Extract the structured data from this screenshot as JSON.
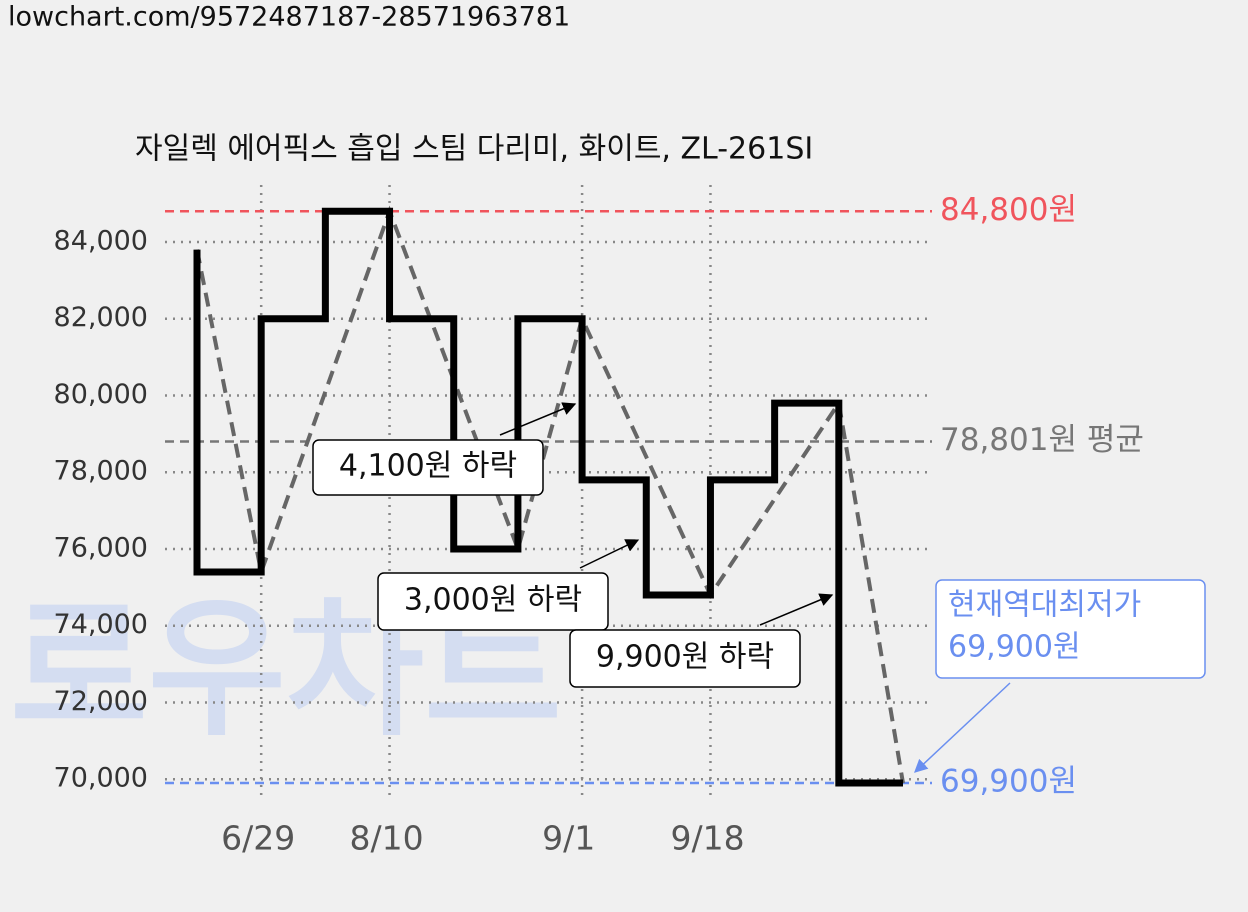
{
  "url": "lowchart.com/9572487187-28571963781",
  "watermark": "로우차트",
  "chart_data": {
    "type": "step",
    "title": "자일렉 에어픽스 흡입 스팀 다리미, 화이트, ZL-261SI",
    "categories": [
      null,
      "6/29",
      null,
      "8/10",
      null,
      null,
      "9/1",
      null,
      "9/18",
      null,
      null,
      null
    ],
    "series": [
      {
        "color": "#000000",
        "values": [
          75400,
          82000,
          84800,
          82000,
          76000,
          82000,
          77800,
          74800,
          77800,
          79800,
          69900,
          69900
        ]
      },
      {
        "color": "#666666",
        "style": "dashed",
        "x": [
          0,
          1,
          3,
          5,
          6,
          8,
          10,
          11
        ],
        "values": [
          83800,
          75400,
          84800,
          76000,
          82000,
          74800,
          79800,
          69900
        ]
      }
    ],
    "ylim": [
      69500,
      85500
    ],
    "yticks": [
      {
        "value": 70000,
        "label": "70,000"
      },
      {
        "value": 72000,
        "label": "72,000"
      },
      {
        "value": 74000,
        "label": "74,000"
      },
      {
        "value": 76000,
        "label": "76,000"
      },
      {
        "value": 78000,
        "label": "78,000"
      },
      {
        "value": 80000,
        "label": "80,000"
      },
      {
        "value": 82000,
        "label": "82,000"
      },
      {
        "value": 84000,
        "label": "84,000"
      }
    ],
    "grid": true,
    "reference_lines": [
      {
        "value": 84800,
        "label": "84,800원",
        "color": "#f0545c"
      },
      {
        "value": 78801,
        "label": "78,801원 평균",
        "color": "#777777"
      },
      {
        "value": 69900,
        "label": "69,900원",
        "color": "#6a8ff0"
      }
    ],
    "annotations": [
      "4,100원 하락",
      "3,000원 하락",
      "9,900원 하락"
    ],
    "lowest_note": [
      "현재역대최저가",
      "69,900원"
    ]
  }
}
